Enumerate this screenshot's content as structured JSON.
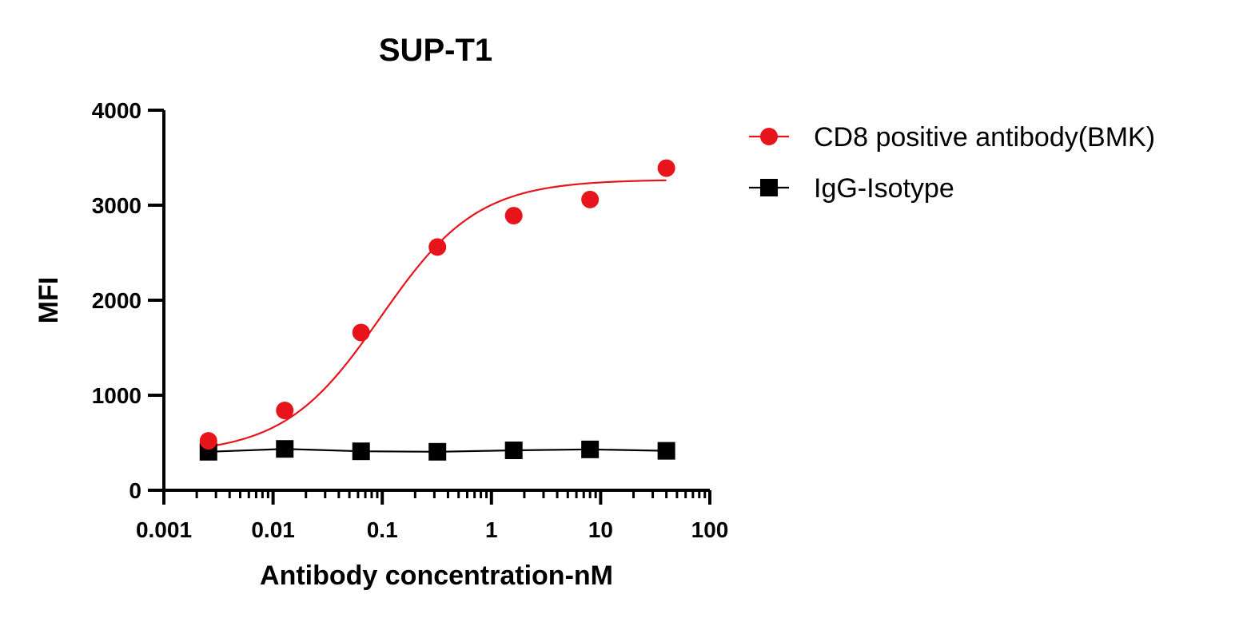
{
  "chart_data": {
    "type": "scatter",
    "title": "SUP-T1",
    "xlabel": "Antibody concentration-nM",
    "ylabel": "MFI",
    "x_scale": "log",
    "xlim": [
      0.001,
      100
    ],
    "ylim": [
      0,
      4000
    ],
    "x_ticks": [
      0.001,
      0.01,
      0.1,
      1,
      10,
      100
    ],
    "x_tick_labels": [
      "0.001",
      "0.01",
      "0.1",
      "1",
      "10",
      "100"
    ],
    "y_ticks": [
      0,
      1000,
      2000,
      3000,
      4000
    ],
    "y_tick_labels": [
      "0",
      "1000",
      "2000",
      "3000",
      "4000"
    ],
    "grid": false,
    "legend_position": "right",
    "series": [
      {
        "name": "CD8 positive antibody(BMK)",
        "color": "#e8141c",
        "marker": "circle",
        "fit": "four-parameter logistic curve",
        "x": [
          0.00256,
          0.0128,
          0.064,
          0.32,
          1.6,
          8,
          40
        ],
        "y": [
          520,
          840,
          1660,
          2560,
          2890,
          3060,
          3390
        ]
      },
      {
        "name": "IgG-Isotype",
        "color": "#000000",
        "marker": "square",
        "fit": "connecting line",
        "x": [
          0.00256,
          0.0128,
          0.064,
          0.32,
          1.6,
          8,
          40
        ],
        "y": [
          405,
          435,
          410,
          405,
          420,
          430,
          415
        ]
      }
    ]
  }
}
